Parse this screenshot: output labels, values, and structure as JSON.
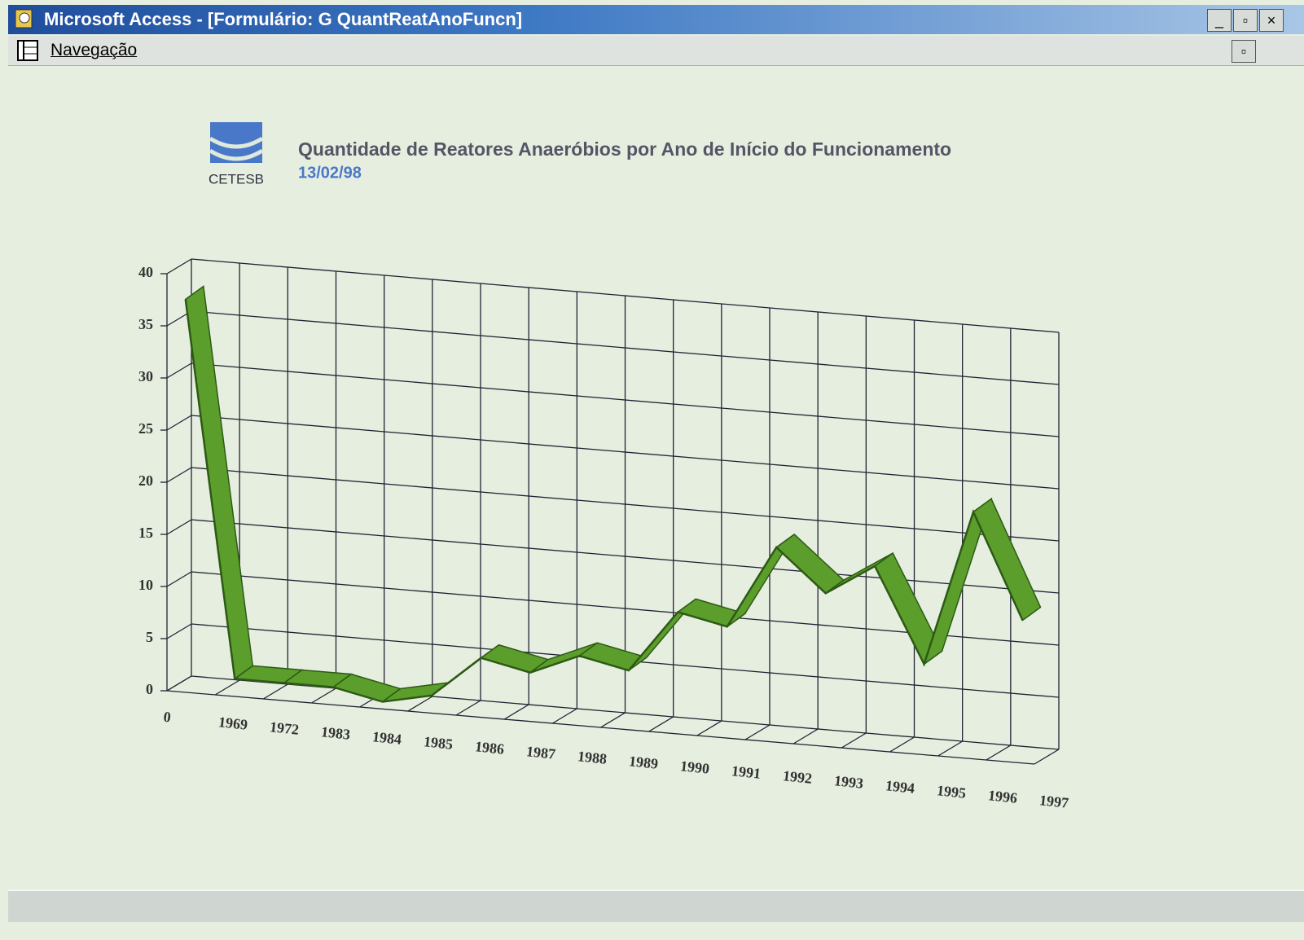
{
  "window": {
    "title": "Microsoft Access - [Formulário: G QuantReatAnoFuncn]",
    "menu": [
      "Navegação"
    ],
    "logo": "CETESB"
  },
  "chart_data": {
    "type": "line3d",
    "title": "Quantidade de Reatores Anaeróbios por Ano de Início do Funcionamento",
    "subtitle": "13/02/98",
    "categories": [
      "0",
      "1969",
      "1972",
      "1983",
      "1984",
      "1985",
      "1986",
      "1987",
      "1988",
      "1989",
      "1990",
      "1991",
      "1992",
      "1993",
      "1994",
      "1995",
      "1996",
      "1997"
    ],
    "values": [
      37,
      1,
      1,
      1,
      0,
      1,
      5,
      4,
      6,
      5,
      11,
      10,
      18,
      14,
      17,
      8,
      23,
      13
    ],
    "color": "#5c9e2c",
    "ylim": [
      0,
      40
    ],
    "yticks": [
      0,
      5,
      10,
      15,
      20,
      25,
      30,
      35,
      40
    ],
    "grid": true
  }
}
